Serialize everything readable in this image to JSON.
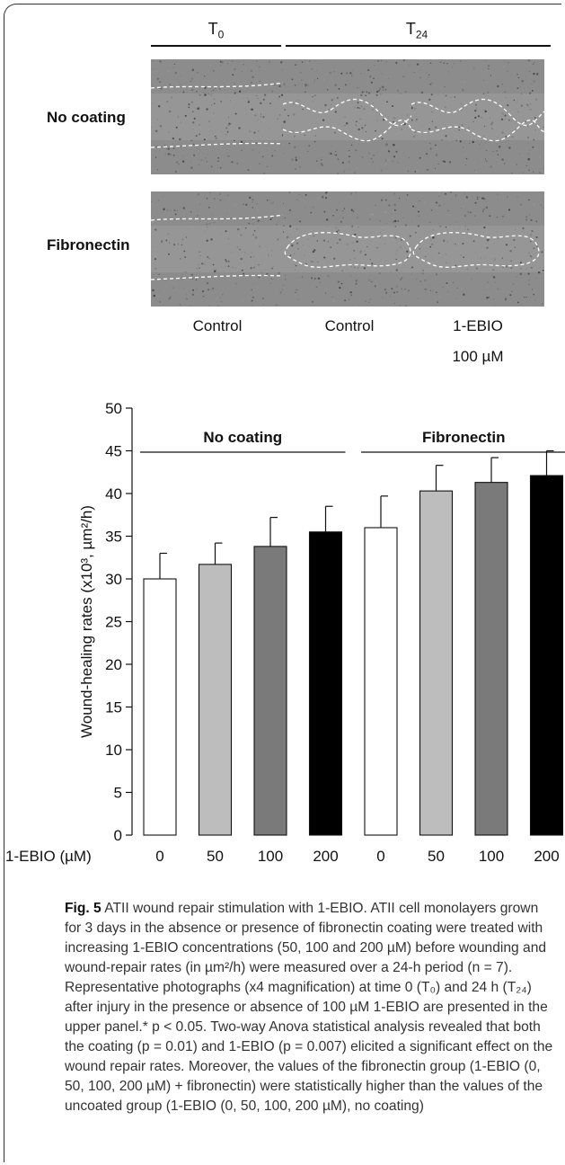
{
  "photos": {
    "time_t0": "T",
    "time_t0_sub": "0",
    "time_t24": "T",
    "time_t24_sub": "24",
    "row_labels": [
      "No coating",
      "Fibronectin"
    ],
    "conditions": [
      "Control",
      "Control",
      "1-EBIO"
    ],
    "condition_sub": "100 µM"
  },
  "chart_data": {
    "type": "bar",
    "ylabel": "Wound-healing rates (x10³, µm²/h)",
    "ylim": [
      0,
      50
    ],
    "yticks": [
      0,
      5,
      10,
      15,
      20,
      25,
      30,
      35,
      40,
      45,
      50
    ],
    "x_axis_label": "1-EBIO (µM)",
    "groups": [
      {
        "name": "No coating",
        "categories": [
          "0",
          "50",
          "100",
          "200"
        ],
        "values": [
          30.0,
          31.7,
          33.8,
          35.5
        ],
        "errors": [
          3.0,
          2.5,
          3.4,
          3.0
        ]
      },
      {
        "name": "Fibronectin",
        "categories": [
          "0",
          "50",
          "100",
          "200"
        ],
        "values": [
          36.0,
          40.3,
          41.3,
          42.1
        ],
        "errors": [
          3.7,
          3.0,
          2.9,
          2.9
        ]
      }
    ],
    "bar_colors": [
      "#ffffff",
      "#bdbdbd",
      "#7a7a7a",
      "#000000"
    ]
  },
  "caption": {
    "label": "Fig. 5",
    "text": "ATII wound repair stimulation with 1-EBIO. ATII cell monolayers grown for 3 days in the absence or presence of fibronectin coating were treated with increasing 1-EBIO concentrations (50, 100 and 200 µM) before wounding and wound-repair rates (in µm²/h) were measured over a 24-h period (n = 7). Representative photographs (x4 magnification) at time 0 (T₀) and 24 h (T₂₄) after injury in the presence or absence of 100 µM 1-EBIO are presented in the upper panel.* p < 0.05. Two-way Anova statistical analysis revealed that both the coating (p = 0.01) and 1-EBIO (p = 0.007) elicited a significant effect on the wound repair rates. Moreover, the values of the fibronectin group (1-EBIO (0, 50, 100, 200 µM) + fibronectin) were statistically higher than the values of the uncoated group (1-EBIO (0, 50, 100, 200 µM), no coating)"
  }
}
